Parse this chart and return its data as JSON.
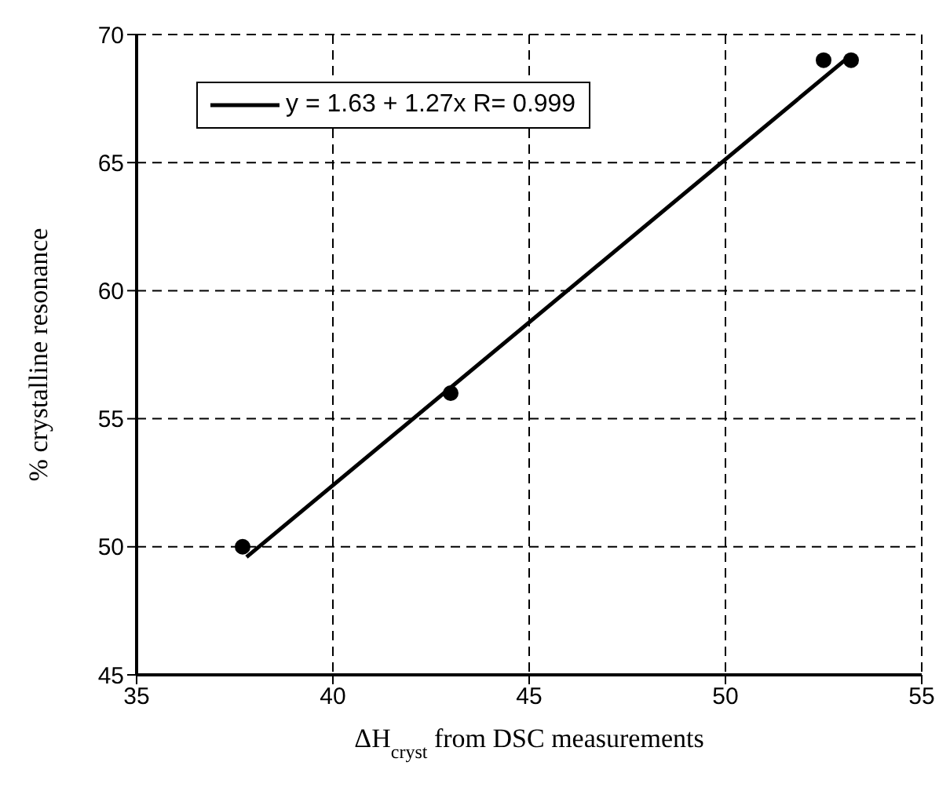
{
  "chart_data": {
    "type": "scatter",
    "xlabel": "ΔH$_{cryst}$ from DSC measurements",
    "ylabel": "% crystalline resonance",
    "xlim": [
      35,
      55
    ],
    "xticks": [
      35,
      40,
      45,
      50,
      55
    ],
    "ylim": [
      45,
      70
    ],
    "yticks": [
      45,
      50,
      55,
      60,
      65,
      70
    ],
    "grid": true,
    "legend": "top left",
    "series": [
      {
        "color": "#000000",
        "marker": "circle",
        "x": [
          37.7,
          43.0,
          52.5,
          53.2
        ],
        "values": [
          50,
          56,
          69,
          69
        ]
      },
      {
        "type": "line",
        "name": "y = 1.63 + 1.27x R= 0.999",
        "color": "#000000",
        "marker": "none",
        "line_style": "solid",
        "x": [
          37.8,
          53.2
        ],
        "values": [
          49.6,
          69.2
        ]
      }
    ]
  }
}
